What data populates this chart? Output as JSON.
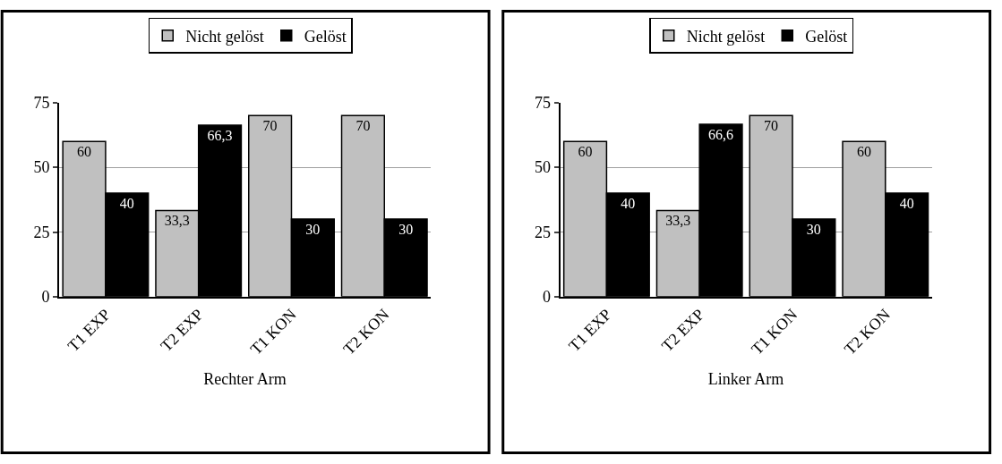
{
  "chart_data": [
    {
      "type": "bar",
      "xlabel": "Rechter Arm",
      "categories": [
        "T1 EXP",
        "T2 EXP",
        "T1 KON",
        "T2 KON"
      ],
      "ylim": [
        0,
        75
      ],
      "yticks": [
        0,
        25,
        50,
        75
      ],
      "grid": "y",
      "legend": "top",
      "series": [
        {
          "name": "Nicht gelöst",
          "color": "#c0c0c0",
          "values": [
            60,
            33.3,
            70,
            70
          ],
          "value_labels": [
            "60",
            "33,3",
            "70",
            "70"
          ]
        },
        {
          "name": "Gelöst",
          "color": "#000000",
          "values": [
            40,
            66.3,
            30,
            30
          ],
          "value_labels": [
            "40",
            "66,3",
            "30",
            "30"
          ]
        }
      ]
    },
    {
      "type": "bar",
      "xlabel": "Linker Arm",
      "categories": [
        "T1 EXP",
        "T2 EXP",
        "T1 KON",
        "T2 KON"
      ],
      "ylim": [
        0,
        75
      ],
      "yticks": [
        0,
        25,
        50,
        75
      ],
      "grid": "y",
      "legend": "top",
      "series": [
        {
          "name": "Nicht gelöst",
          "color": "#c0c0c0",
          "values": [
            60,
            33.3,
            70,
            60
          ],
          "value_labels": [
            "60",
            "33,3",
            "70",
            "60"
          ]
        },
        {
          "name": "Gelöst",
          "color": "#000000",
          "values": [
            40,
            66.6,
            30,
            40
          ],
          "value_labels": [
            "40",
            "66,6",
            "30",
            "40"
          ]
        }
      ]
    }
  ]
}
